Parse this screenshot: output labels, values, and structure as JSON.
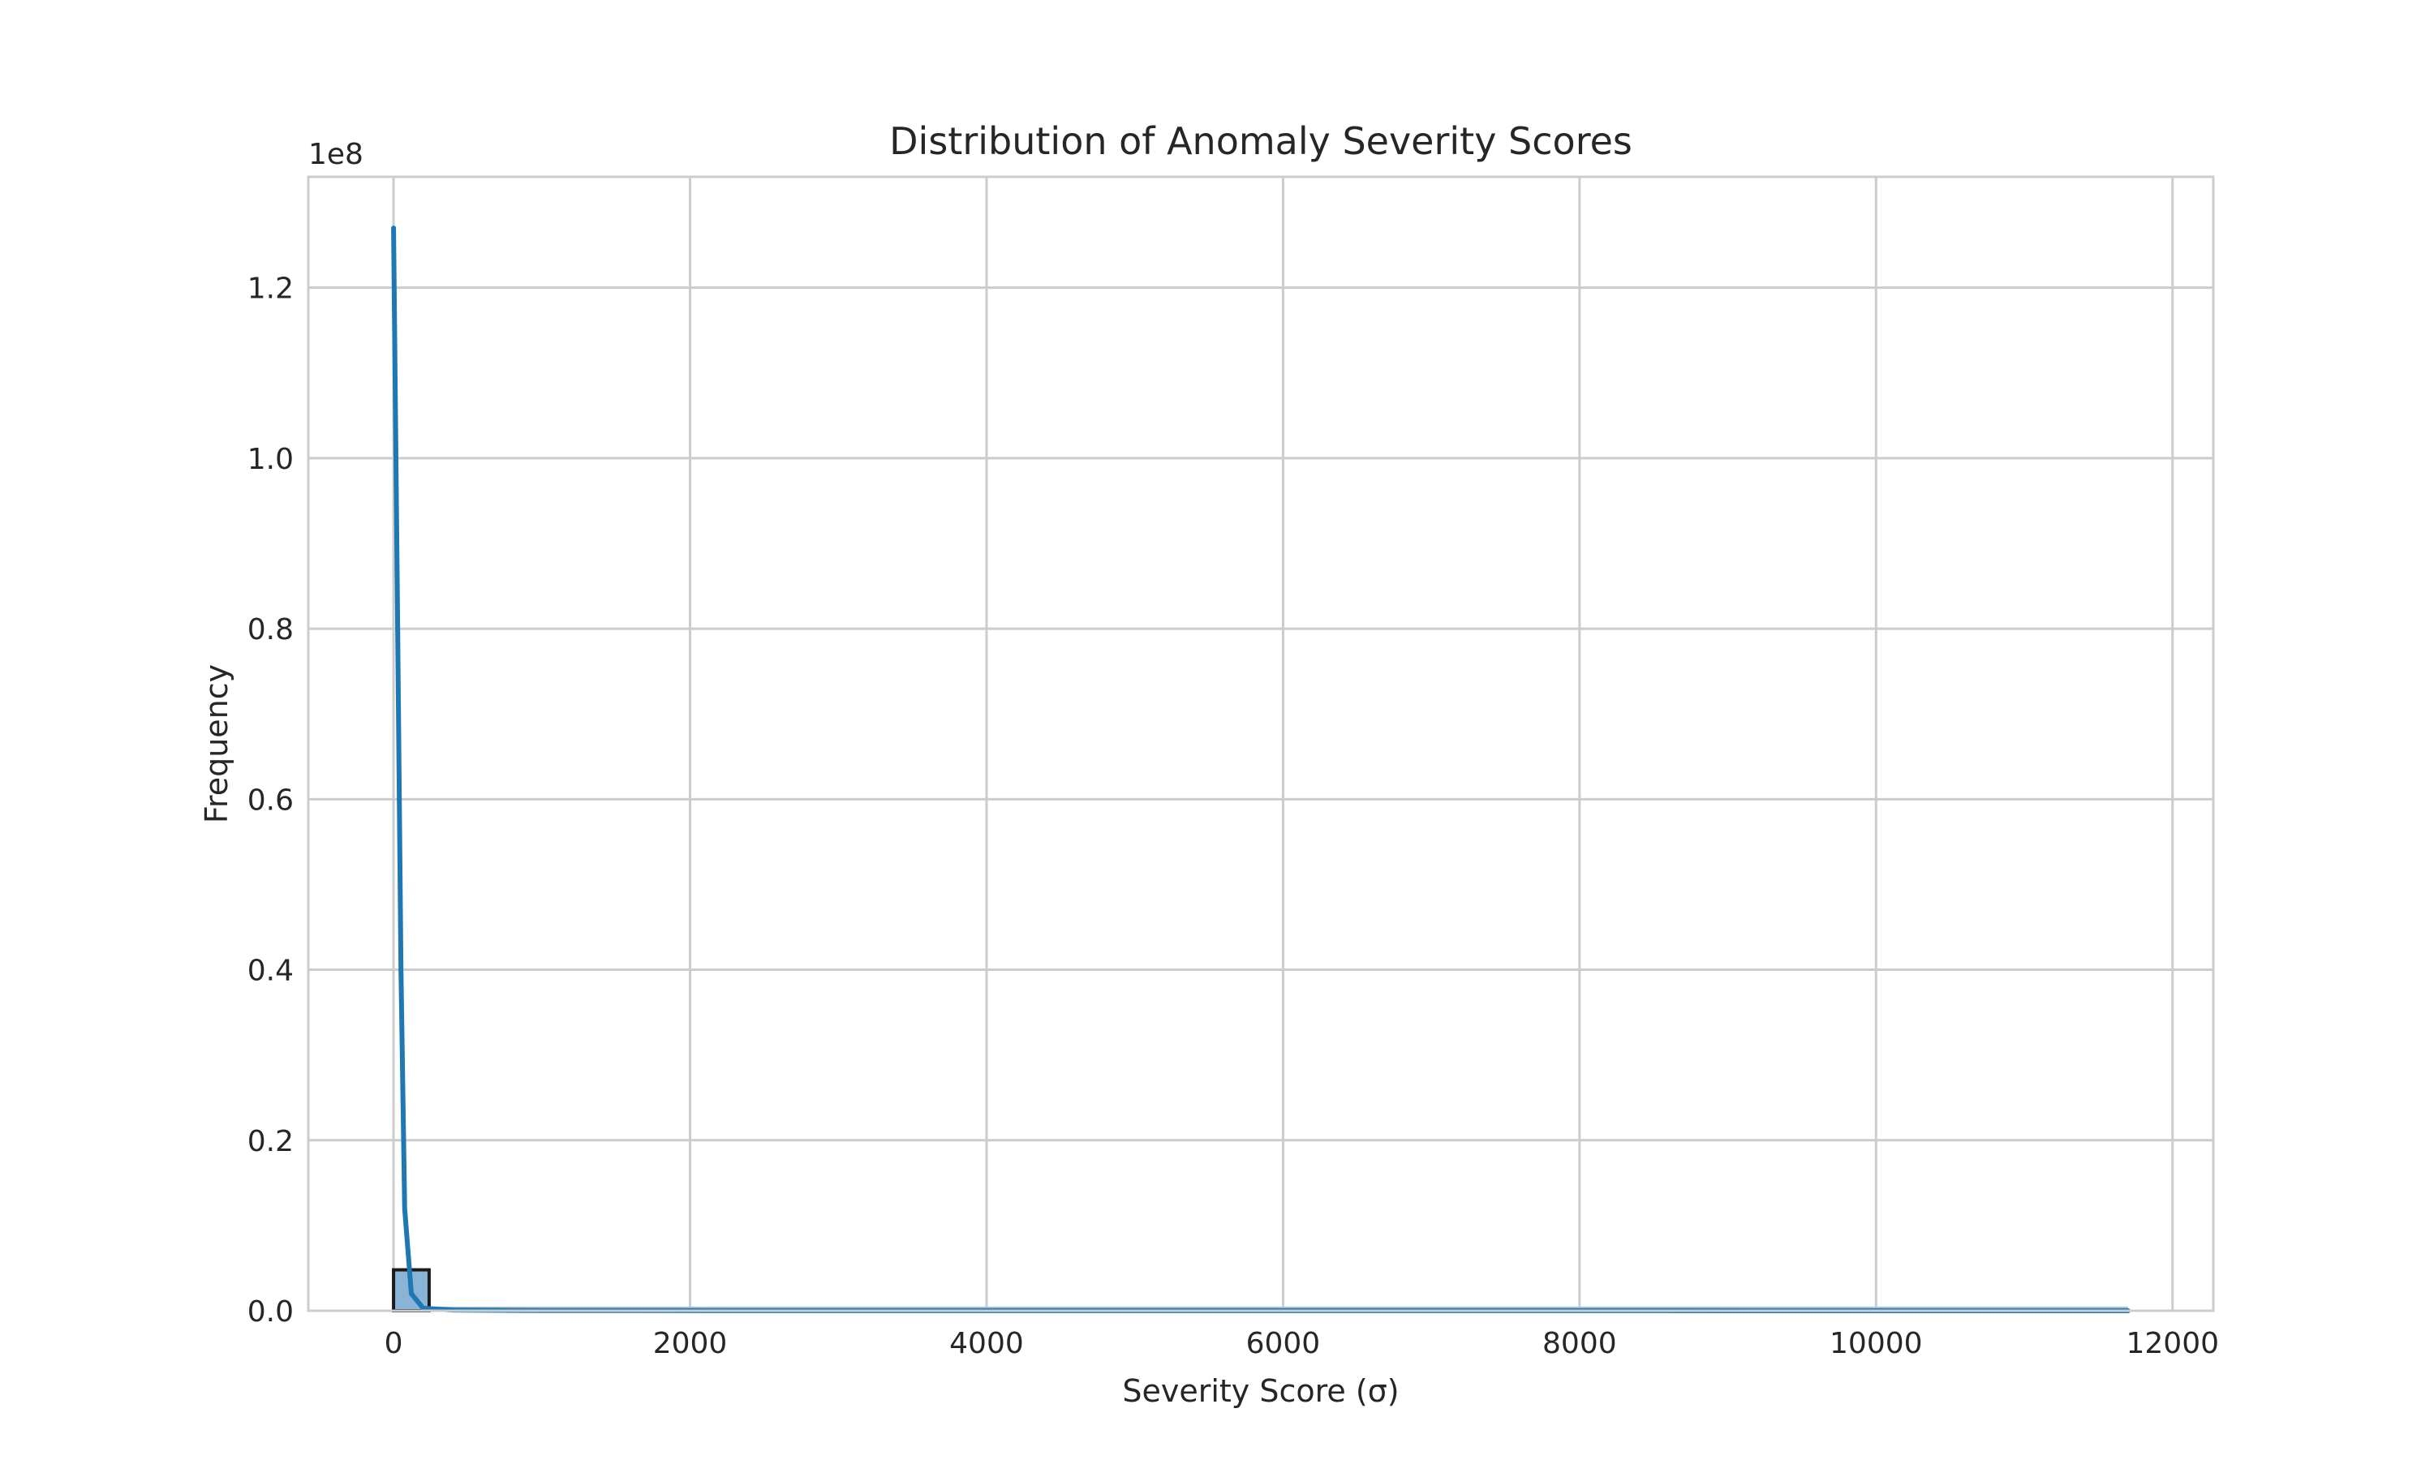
{
  "chart_data": {
    "type": "bar",
    "title": "Distribution of Anomaly Severity Scores",
    "xlabel": "Severity Score (σ)",
    "ylabel": "Frequency",
    "y_offset_text": "1e8",
    "y_scale_factor": 100000000,
    "xlim": [
      -575,
      12275
    ],
    "ylim": [
      0,
      1.33
    ],
    "x_ticks": [
      0,
      2000,
      4000,
      6000,
      8000,
      10000,
      12000
    ],
    "x_tick_labels": [
      "0",
      "2000",
      "4000",
      "6000",
      "8000",
      "10000",
      "12000"
    ],
    "y_ticks": [
      0.0,
      0.2,
      0.4,
      0.6,
      0.8,
      1.0,
      1.2
    ],
    "y_tick_labels": [
      "0.0",
      "0.2",
      "0.4",
      "0.6",
      "0.8",
      "1.0",
      "1.2"
    ],
    "grid": true,
    "histogram": {
      "bins": [
        {
          "x0": 0,
          "x1": 240,
          "value": 0.048
        }
      ],
      "baseline_end_x": 11700
    },
    "kde_series": {
      "name": "",
      "x": [
        0,
        25,
        50,
        75,
        120,
        200,
        400,
        1000,
        11700
      ],
      "y": [
        1.27,
        0.85,
        0.4,
        0.12,
        0.02,
        0.003,
        0.0008,
        0.0002,
        0.0
      ]
    },
    "colors": {
      "bar_fill": "#8ab4d7",
      "bar_edge": "#1a1a1a",
      "kde_line": "#1f77b4",
      "baseline": "#9dc0dd",
      "grid": "#cccccc",
      "spine": "#cccccc",
      "text": "#262626"
    }
  }
}
